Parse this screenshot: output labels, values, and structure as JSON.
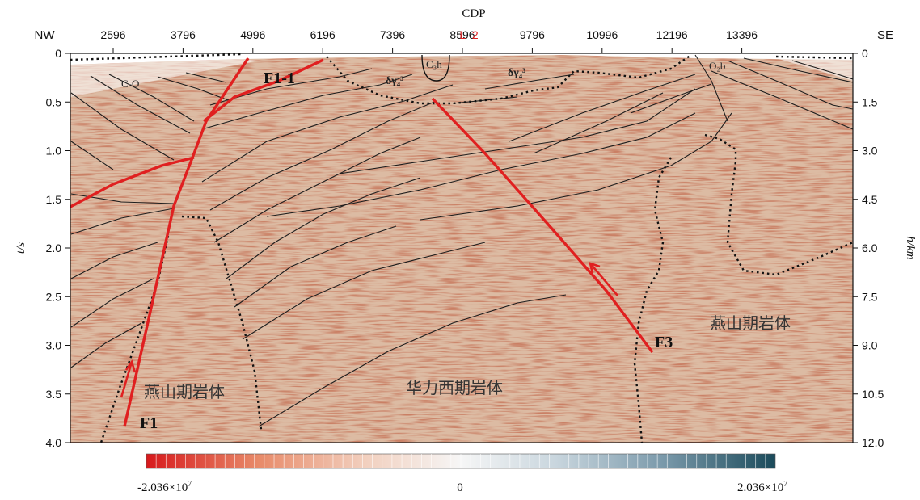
{
  "top_axis": {
    "title": "CDP",
    "ticks": [
      "2596",
      "3796",
      "4996",
      "6196",
      "7396",
      "8596",
      "9796",
      "10996",
      "12196",
      "13396"
    ],
    "marker_label": "L–2",
    "marker_color": "#e02020"
  },
  "directions": {
    "left": "NW",
    "right": "SE"
  },
  "left_axis": {
    "title": "t/s",
    "ticks": [
      "0",
      "0.5",
      "1.0",
      "1.5",
      "2.0",
      "2.5",
      "3.0",
      "3.5",
      "4.0"
    ]
  },
  "right_axis": {
    "title": "h/km",
    "ticks": [
      "0",
      "1.5",
      "3.0",
      "4.5",
      "6.0",
      "7.5",
      "9.0",
      "10.5",
      "12.0"
    ]
  },
  "faults": {
    "f1": "F1",
    "f1_1": "F1-1",
    "f3": "F3"
  },
  "strata_labels": {
    "c_o": "C-O",
    "c3h": "C₃h",
    "o2b": "O₂b"
  },
  "intrusion_symbols": {
    "left": "δγ₄³",
    "right": "δγ₄³"
  },
  "rock_bodies": {
    "left": "燕山期岩体",
    "center": "华力西期岩体",
    "right": "燕山期岩体"
  },
  "colorbar": {
    "min_label": "-2.036×10",
    "min_exp": "7",
    "mid_label": "0",
    "max_label": "2.036×10",
    "max_exp": "7",
    "colors": [
      "#d7191c",
      "#f4f4f4",
      "#1a4a5a"
    ]
  },
  "colors": {
    "fault": "#e02020",
    "background": "#c79a78",
    "horizon": "#222222"
  }
}
